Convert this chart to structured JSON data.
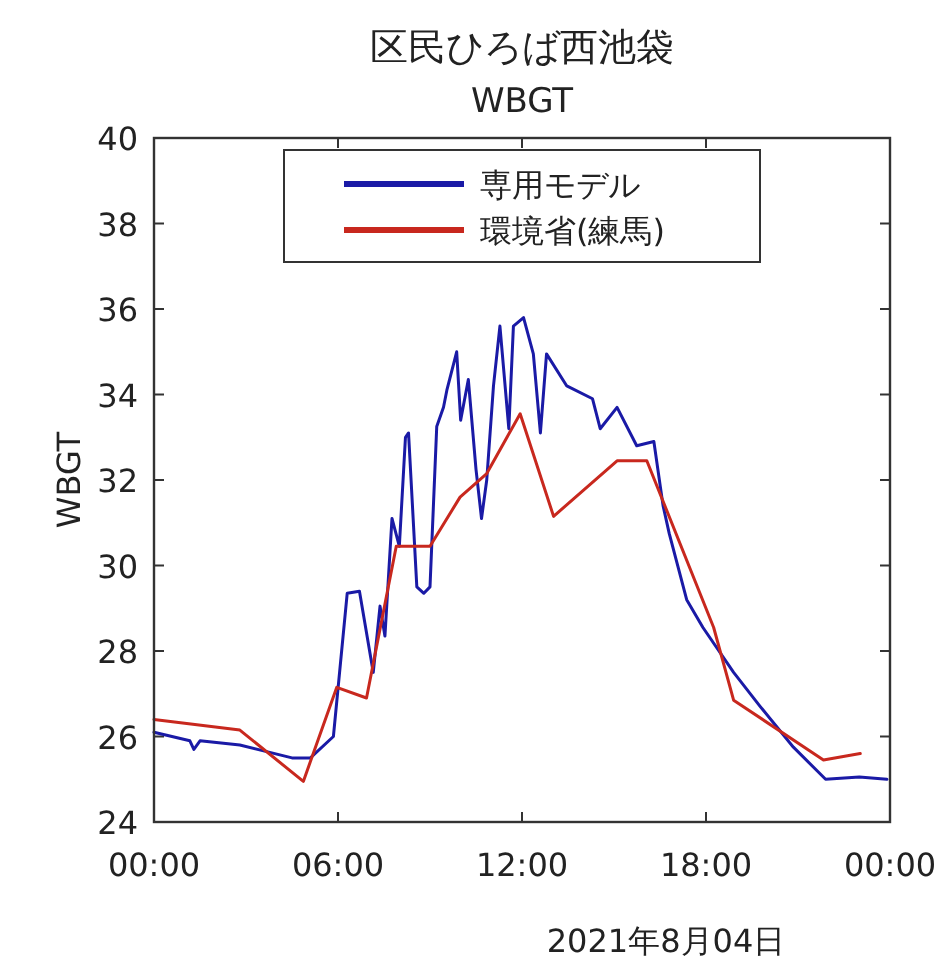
{
  "chart_data": {
    "type": "line",
    "title": "区民ひろば西池袋",
    "subtitle": "WBGT",
    "xlabel": "2021年8月04日",
    "ylabel": "WBGT",
    "xlim": [
      0,
      24
    ],
    "ylim": [
      24,
      40
    ],
    "xticks": [
      {
        "value": 0,
        "label": "00:00"
      },
      {
        "value": 6,
        "label": "06:00"
      },
      {
        "value": 12,
        "label": "12:00"
      },
      {
        "value": 18,
        "label": "18:00"
      },
      {
        "value": 24,
        "label": "00:00"
      }
    ],
    "yticks": [
      24,
      26,
      28,
      30,
      32,
      34,
      36,
      38,
      40
    ],
    "legend": "top",
    "grid": false,
    "series": [
      {
        "name": "専用モデル",
        "color": "#1a1aa6",
        "x": [
          0,
          1.17,
          1.3,
          1.5,
          2.8,
          4.5,
          5.1,
          5.85,
          6.3,
          6.7,
          7.15,
          7.37,
          7.53,
          7.76,
          8.0,
          8.2,
          8.3,
          8.57,
          8.8,
          9.0,
          9.22,
          9.44,
          9.55,
          9.87,
          10.0,
          10.25,
          10.5,
          10.68,
          10.85,
          11.07,
          11.28,
          11.57,
          11.72,
          12.05,
          12.37,
          12.6,
          12.8,
          13.46,
          14.3,
          14.55,
          15.1,
          15.74,
          16.3,
          16.6,
          16.8,
          17.37,
          17.9,
          18.9,
          19.77,
          20.85,
          21.9,
          23.0,
          23.9
        ],
        "values": [
          26.1,
          25.9,
          25.7,
          25.9,
          25.8,
          25.5,
          25.5,
          26.0,
          29.35,
          29.4,
          27.5,
          29.05,
          28.35,
          31.1,
          30.45,
          33.0,
          33.1,
          29.5,
          29.35,
          29.5,
          33.25,
          33.7,
          34.1,
          35.0,
          33.4,
          34.35,
          32.25,
          31.1,
          32.0,
          34.2,
          35.6,
          33.2,
          35.6,
          35.8,
          34.95,
          33.1,
          34.95,
          34.2,
          33.9,
          33.2,
          33.7,
          32.8,
          32.9,
          31.4,
          30.75,
          29.2,
          28.55,
          27.5,
          26.7,
          25.75,
          25.0,
          25.05,
          25.0
        ]
      },
      {
        "name": "環境省(練馬)",
        "color": "#c8281e",
        "x": [
          0,
          2.8,
          4.87,
          5.96,
          6.93,
          7.9,
          9.0,
          9.98,
          10.85,
          11.94,
          13.03,
          15.1,
          16.07,
          18.25,
          18.9,
          21.83,
          23.03
        ],
        "values": [
          26.4,
          26.15,
          24.95,
          27.15,
          26.9,
          30.45,
          30.45,
          31.6,
          32.15,
          33.55,
          31.15,
          32.45,
          32.45,
          28.55,
          26.85,
          25.45,
          25.6
        ]
      }
    ]
  }
}
